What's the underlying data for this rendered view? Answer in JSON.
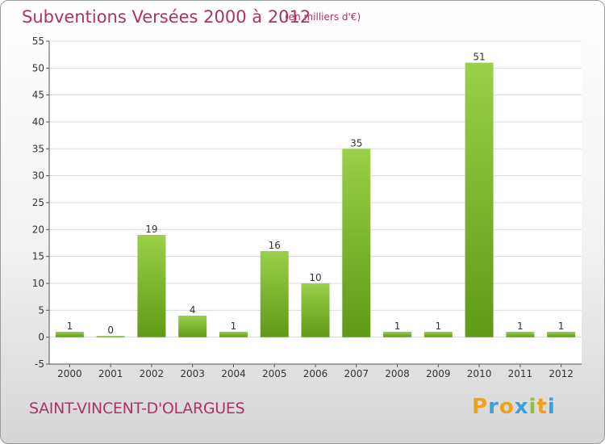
{
  "header": {
    "title": "Subventions Versées 2000 à 2012",
    "subtitle": "(en milliers d'€)"
  },
  "footer": {
    "commune": "SAINT-VINCENT-D'OLARGUES",
    "logo": {
      "letters": [
        "P",
        "r",
        "o",
        "x",
        "i",
        "t",
        "i"
      ],
      "colors": [
        "#f0a020",
        "#3aa0d8",
        "#f0a020",
        "#3aa0d8",
        "#90c040",
        "#f0a020",
        "#3aa0d8"
      ]
    }
  },
  "colors": {
    "title": "#b0306a",
    "bar_light": "#9ad04a",
    "bar_dark": "#5f9a16",
    "grid": "#d9d9d9"
  },
  "chart_data": {
    "type": "bar",
    "title": "Subventions Versées 2000 à 2012",
    "subtitle": "(en milliers d'€)",
    "categories": [
      "2000",
      "2001",
      "2002",
      "2003",
      "2004",
      "2005",
      "2006",
      "2007",
      "2008",
      "2009",
      "2010",
      "2011",
      "2012"
    ],
    "values": [
      1,
      0,
      19,
      4,
      1,
      16,
      10,
      35,
      1,
      1,
      51,
      1,
      1
    ],
    "data_labels": [
      "1",
      "0",
      "19",
      "4",
      "1",
      "16",
      "10",
      "35",
      "1",
      "1",
      "51",
      "1",
      "1"
    ],
    "ylim": [
      -5,
      55
    ],
    "yticks": [
      -5,
      0,
      5,
      10,
      15,
      20,
      25,
      30,
      35,
      40,
      45,
      50,
      55
    ],
    "ytick_labels": [
      "-5",
      "0",
      "5",
      "10",
      "15",
      "20",
      "25",
      "30",
      "35",
      "40",
      "45",
      "50",
      "55"
    ],
    "grid": true,
    "legend": "none"
  }
}
